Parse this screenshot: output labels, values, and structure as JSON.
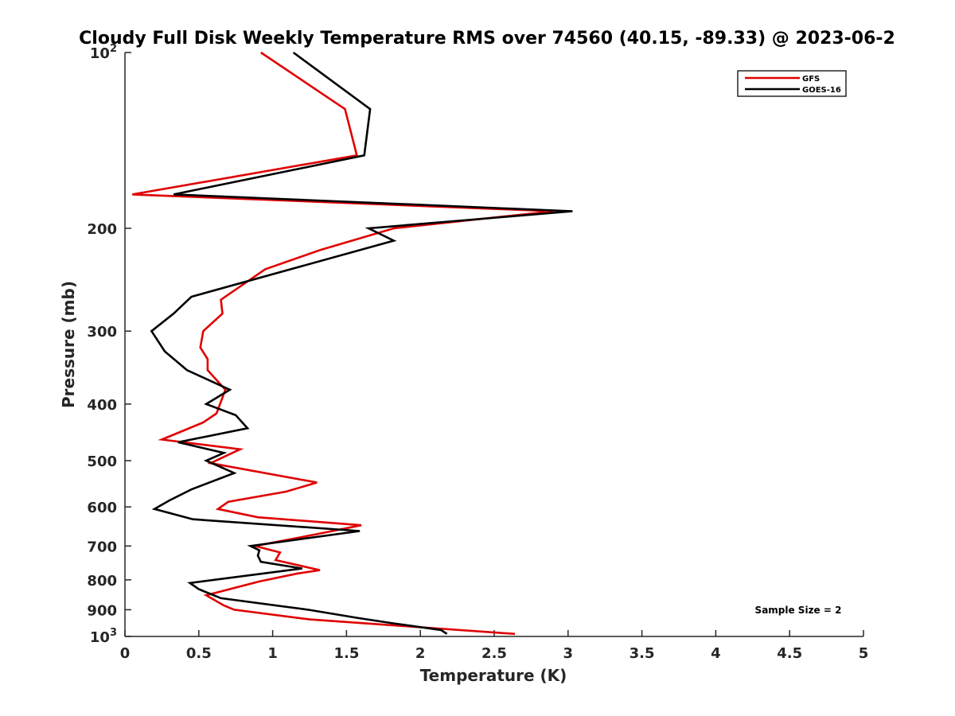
{
  "chart_data": {
    "type": "line",
    "title": "Cloudy Full Disk Weekly Temperature RMS over 74560 (40.15, -89.33) @ 2023-06-2",
    "xlabel": "Temperature (K)",
    "ylabel": "Pressure (mb)",
    "xlim": [
      0,
      5
    ],
    "ylim": [
      1000,
      100
    ],
    "y_scale": "log",
    "y_reversed": true,
    "grid": false,
    "legend_position": "top-right",
    "x_ticks": [
      {
        "value": 0,
        "label": "0"
      },
      {
        "value": 0.5,
        "label": "0.5"
      },
      {
        "value": 1,
        "label": "1"
      },
      {
        "value": 1.5,
        "label": "1.5"
      },
      {
        "value": 2,
        "label": "2"
      },
      {
        "value": 2.5,
        "label": "2.5"
      },
      {
        "value": 3,
        "label": "3"
      },
      {
        "value": 3.5,
        "label": "3.5"
      },
      {
        "value": 4,
        "label": "4"
      },
      {
        "value": 4.5,
        "label": "4.5"
      },
      {
        "value": 5,
        "label": "5"
      }
    ],
    "y_ticks": [
      {
        "value": 100,
        "label": "10",
        "exponent": "2"
      },
      {
        "value": 200,
        "label": "200"
      },
      {
        "value": 300,
        "label": "300"
      },
      {
        "value": 400,
        "label": "400"
      },
      {
        "value": 500,
        "label": "500"
      },
      {
        "value": 600,
        "label": "600"
      },
      {
        "value": 700,
        "label": "700"
      },
      {
        "value": 800,
        "label": "800"
      },
      {
        "value": 900,
        "label": "900"
      },
      {
        "value": 1000,
        "label": "10",
        "exponent": "3"
      }
    ],
    "series": [
      {
        "name": "GFS",
        "color": "#e00000",
        "points": [
          {
            "x": 0.92,
            "p": 100
          },
          {
            "x": 1.49,
            "p": 125
          },
          {
            "x": 1.57,
            "p": 150
          },
          {
            "x": 0.05,
            "p": 175
          },
          {
            "x": 2.9,
            "p": 187
          },
          {
            "x": 1.82,
            "p": 200
          },
          {
            "x": 1.32,
            "p": 218
          },
          {
            "x": 0.95,
            "p": 235
          },
          {
            "x": 0.65,
            "p": 265
          },
          {
            "x": 0.66,
            "p": 280
          },
          {
            "x": 0.53,
            "p": 300
          },
          {
            "x": 0.51,
            "p": 320
          },
          {
            "x": 0.56,
            "p": 335
          },
          {
            "x": 0.56,
            "p": 350
          },
          {
            "x": 0.68,
            "p": 378
          },
          {
            "x": 0.62,
            "p": 415
          },
          {
            "x": 0.53,
            "p": 430
          },
          {
            "x": 0.25,
            "p": 460
          },
          {
            "x": 0.78,
            "p": 478
          },
          {
            "x": 0.58,
            "p": 505
          },
          {
            "x": 1.3,
            "p": 545
          },
          {
            "x": 1.09,
            "p": 565
          },
          {
            "x": 0.7,
            "p": 588
          },
          {
            "x": 0.63,
            "p": 605
          },
          {
            "x": 0.9,
            "p": 625
          },
          {
            "x": 1.6,
            "p": 645
          },
          {
            "x": 1.3,
            "p": 668
          },
          {
            "x": 0.88,
            "p": 700
          },
          {
            "x": 1.05,
            "p": 718
          },
          {
            "x": 1.02,
            "p": 740
          },
          {
            "x": 1.32,
            "p": 770
          },
          {
            "x": 1.17,
            "p": 780
          },
          {
            "x": 0.91,
            "p": 805
          },
          {
            "x": 0.55,
            "p": 850
          },
          {
            "x": 0.67,
            "p": 885
          },
          {
            "x": 0.74,
            "p": 900
          },
          {
            "x": 1.25,
            "p": 935
          },
          {
            "x": 2.64,
            "p": 990
          }
        ]
      },
      {
        "name": "GOES-16",
        "color": "#000000",
        "points": [
          {
            "x": 1.14,
            "p": 100
          },
          {
            "x": 1.66,
            "p": 125
          },
          {
            "x": 1.62,
            "p": 150
          },
          {
            "x": 0.33,
            "p": 175
          },
          {
            "x": 3.03,
            "p": 187
          },
          {
            "x": 1.65,
            "p": 200
          },
          {
            "x": 1.82,
            "p": 210
          },
          {
            "x": 0.45,
            "p": 262
          },
          {
            "x": 0.33,
            "p": 280
          },
          {
            "x": 0.18,
            "p": 300
          },
          {
            "x": 0.27,
            "p": 325
          },
          {
            "x": 0.42,
            "p": 350
          },
          {
            "x": 0.71,
            "p": 378
          },
          {
            "x": 0.55,
            "p": 400
          },
          {
            "x": 0.75,
            "p": 418
          },
          {
            "x": 0.83,
            "p": 440
          },
          {
            "x": 0.36,
            "p": 465
          },
          {
            "x": 0.67,
            "p": 485
          },
          {
            "x": 0.55,
            "p": 500
          },
          {
            "x": 0.74,
            "p": 525
          },
          {
            "x": 0.45,
            "p": 560
          },
          {
            "x": 0.3,
            "p": 585
          },
          {
            "x": 0.2,
            "p": 605
          },
          {
            "x": 0.46,
            "p": 630
          },
          {
            "x": 1.59,
            "p": 660
          },
          {
            "x": 0.85,
            "p": 700
          },
          {
            "x": 0.91,
            "p": 712
          },
          {
            "x": 0.9,
            "p": 727
          },
          {
            "x": 0.92,
            "p": 745
          },
          {
            "x": 1.2,
            "p": 765
          },
          {
            "x": 0.44,
            "p": 810
          },
          {
            "x": 0.5,
            "p": 830
          },
          {
            "x": 0.65,
            "p": 860
          },
          {
            "x": 1.24,
            "p": 900
          },
          {
            "x": 1.58,
            "p": 930
          },
          {
            "x": 1.82,
            "p": 950
          },
          {
            "x": 2.14,
            "p": 975
          },
          {
            "x": 2.18,
            "p": 990
          }
        ]
      }
    ],
    "annotation": "Sample Size = 2"
  }
}
